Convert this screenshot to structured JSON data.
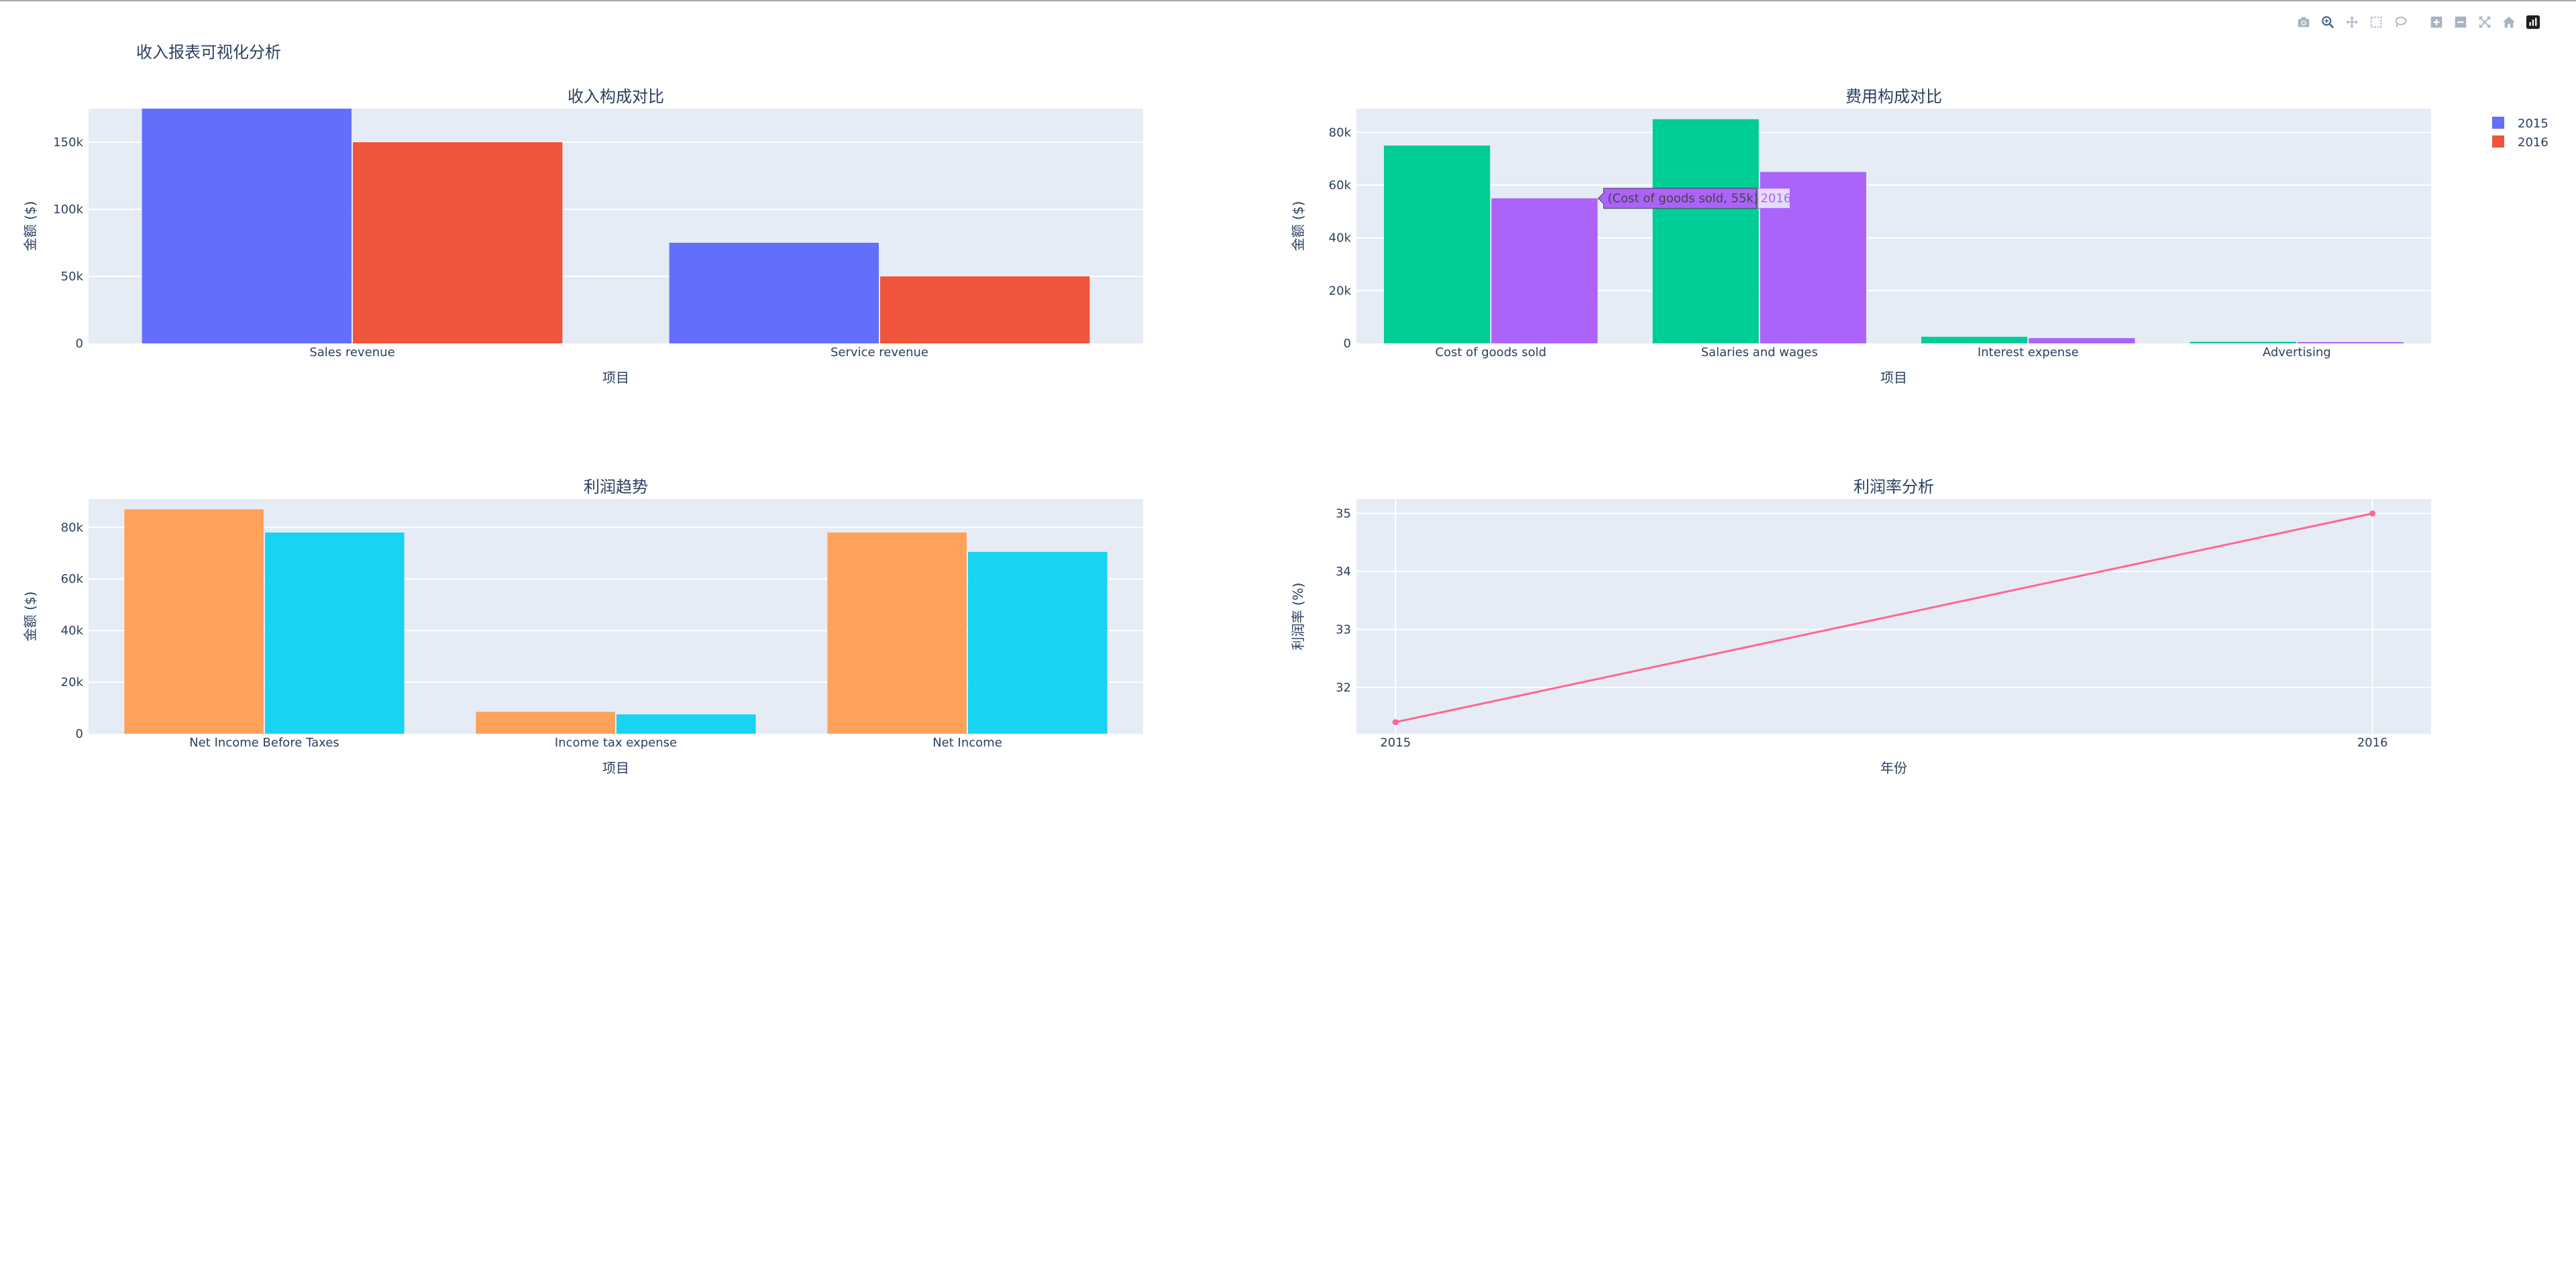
{
  "page_title": "收入报表可视化分析",
  "modebar": {
    "icons": [
      "camera-icon",
      "zoom-icon",
      "pan-icon",
      "box-select-icon",
      "lasso-select-icon",
      "zoom-in-icon",
      "zoom-out-icon",
      "autoscale-icon",
      "reset-axes-icon",
      "plotly-logo-icon"
    ]
  },
  "colors": {
    "plot_bg": "#E5ECF6",
    "grid": "#FFFFFF",
    "text": "#2a3f5f",
    "c2015_top": "#636EFA",
    "c2016_top": "#EF553B",
    "c2015_exp": "#00CC96",
    "c2016_exp": "#AB63FA",
    "c2015_profit": "#FFA15A",
    "c2016_profit": "#19D3F3",
    "margin_line": "#FF6692"
  },
  "legend": {
    "items": [
      {
        "label": "2015",
        "color": "#636EFA"
      },
      {
        "label": "2016",
        "color": "#EF553B"
      }
    ]
  },
  "tooltip": {
    "text": "(Cost of goods sold, 55k)",
    "name": "2016",
    "color": "#AB63FA"
  },
  "chart_data": [
    {
      "type": "bar",
      "title": "收入构成对比",
      "xlabel": "项目",
      "ylabel": "金额 ($)",
      "categories": [
        "Sales revenue",
        "Service revenue"
      ],
      "series": [
        {
          "name": "2015",
          "values": [
            175000,
            75000
          ]
        },
        {
          "name": "2016",
          "values": [
            150000,
            50000
          ]
        }
      ],
      "ylim": [
        0,
        175000
      ],
      "yticks": [
        0,
        50000,
        100000,
        150000
      ],
      "ytick_labels": [
        "0",
        "50k",
        "100k",
        "150k"
      ]
    },
    {
      "type": "bar",
      "title": "费用构成对比",
      "xlabel": "项目",
      "ylabel": "金额 ($)",
      "categories": [
        "Cost of goods sold",
        "Salaries and wages",
        "Interest expense",
        "Advertising"
      ],
      "series": [
        {
          "name": "2015",
          "values": [
            75000,
            85000,
            2500,
            600
          ]
        },
        {
          "name": "2016",
          "values": [
            55000,
            65000,
            2000,
            500
          ]
        }
      ],
      "ylim": [
        0,
        89000
      ],
      "yticks": [
        0,
        20000,
        40000,
        60000,
        80000
      ],
      "ytick_labels": [
        "0",
        "20k",
        "40k",
        "60k",
        "80k"
      ]
    },
    {
      "type": "bar",
      "title": "利润趋势",
      "xlabel": "项目",
      "ylabel": "金额 ($)",
      "categories": [
        "Net Income Before Taxes",
        "Income tax expense",
        "Net Income"
      ],
      "series": [
        {
          "name": "2015",
          "values": [
            87000,
            8500,
            78000
          ]
        },
        {
          "name": "2016",
          "values": [
            78000,
            7500,
            70500
          ]
        }
      ],
      "ylim": [
        0,
        91000
      ],
      "yticks": [
        0,
        20000,
        40000,
        60000,
        80000
      ],
      "ytick_labels": [
        "0",
        "20k",
        "40k",
        "60k",
        "80k"
      ]
    },
    {
      "type": "line",
      "title": "利润率分析",
      "xlabel": "年份",
      "ylabel": "利润率 (%)",
      "x": [
        2015,
        2016
      ],
      "values": [
        31.4,
        35.0
      ],
      "xlim": [
        2014.96,
        2016.06
      ],
      "ylim": [
        31.2,
        35.25
      ],
      "yticks": [
        32,
        33,
        34,
        35
      ],
      "ytick_labels": [
        "32",
        "33",
        "34",
        "35"
      ],
      "xtick_labels": [
        "2015",
        "2016"
      ]
    }
  ]
}
